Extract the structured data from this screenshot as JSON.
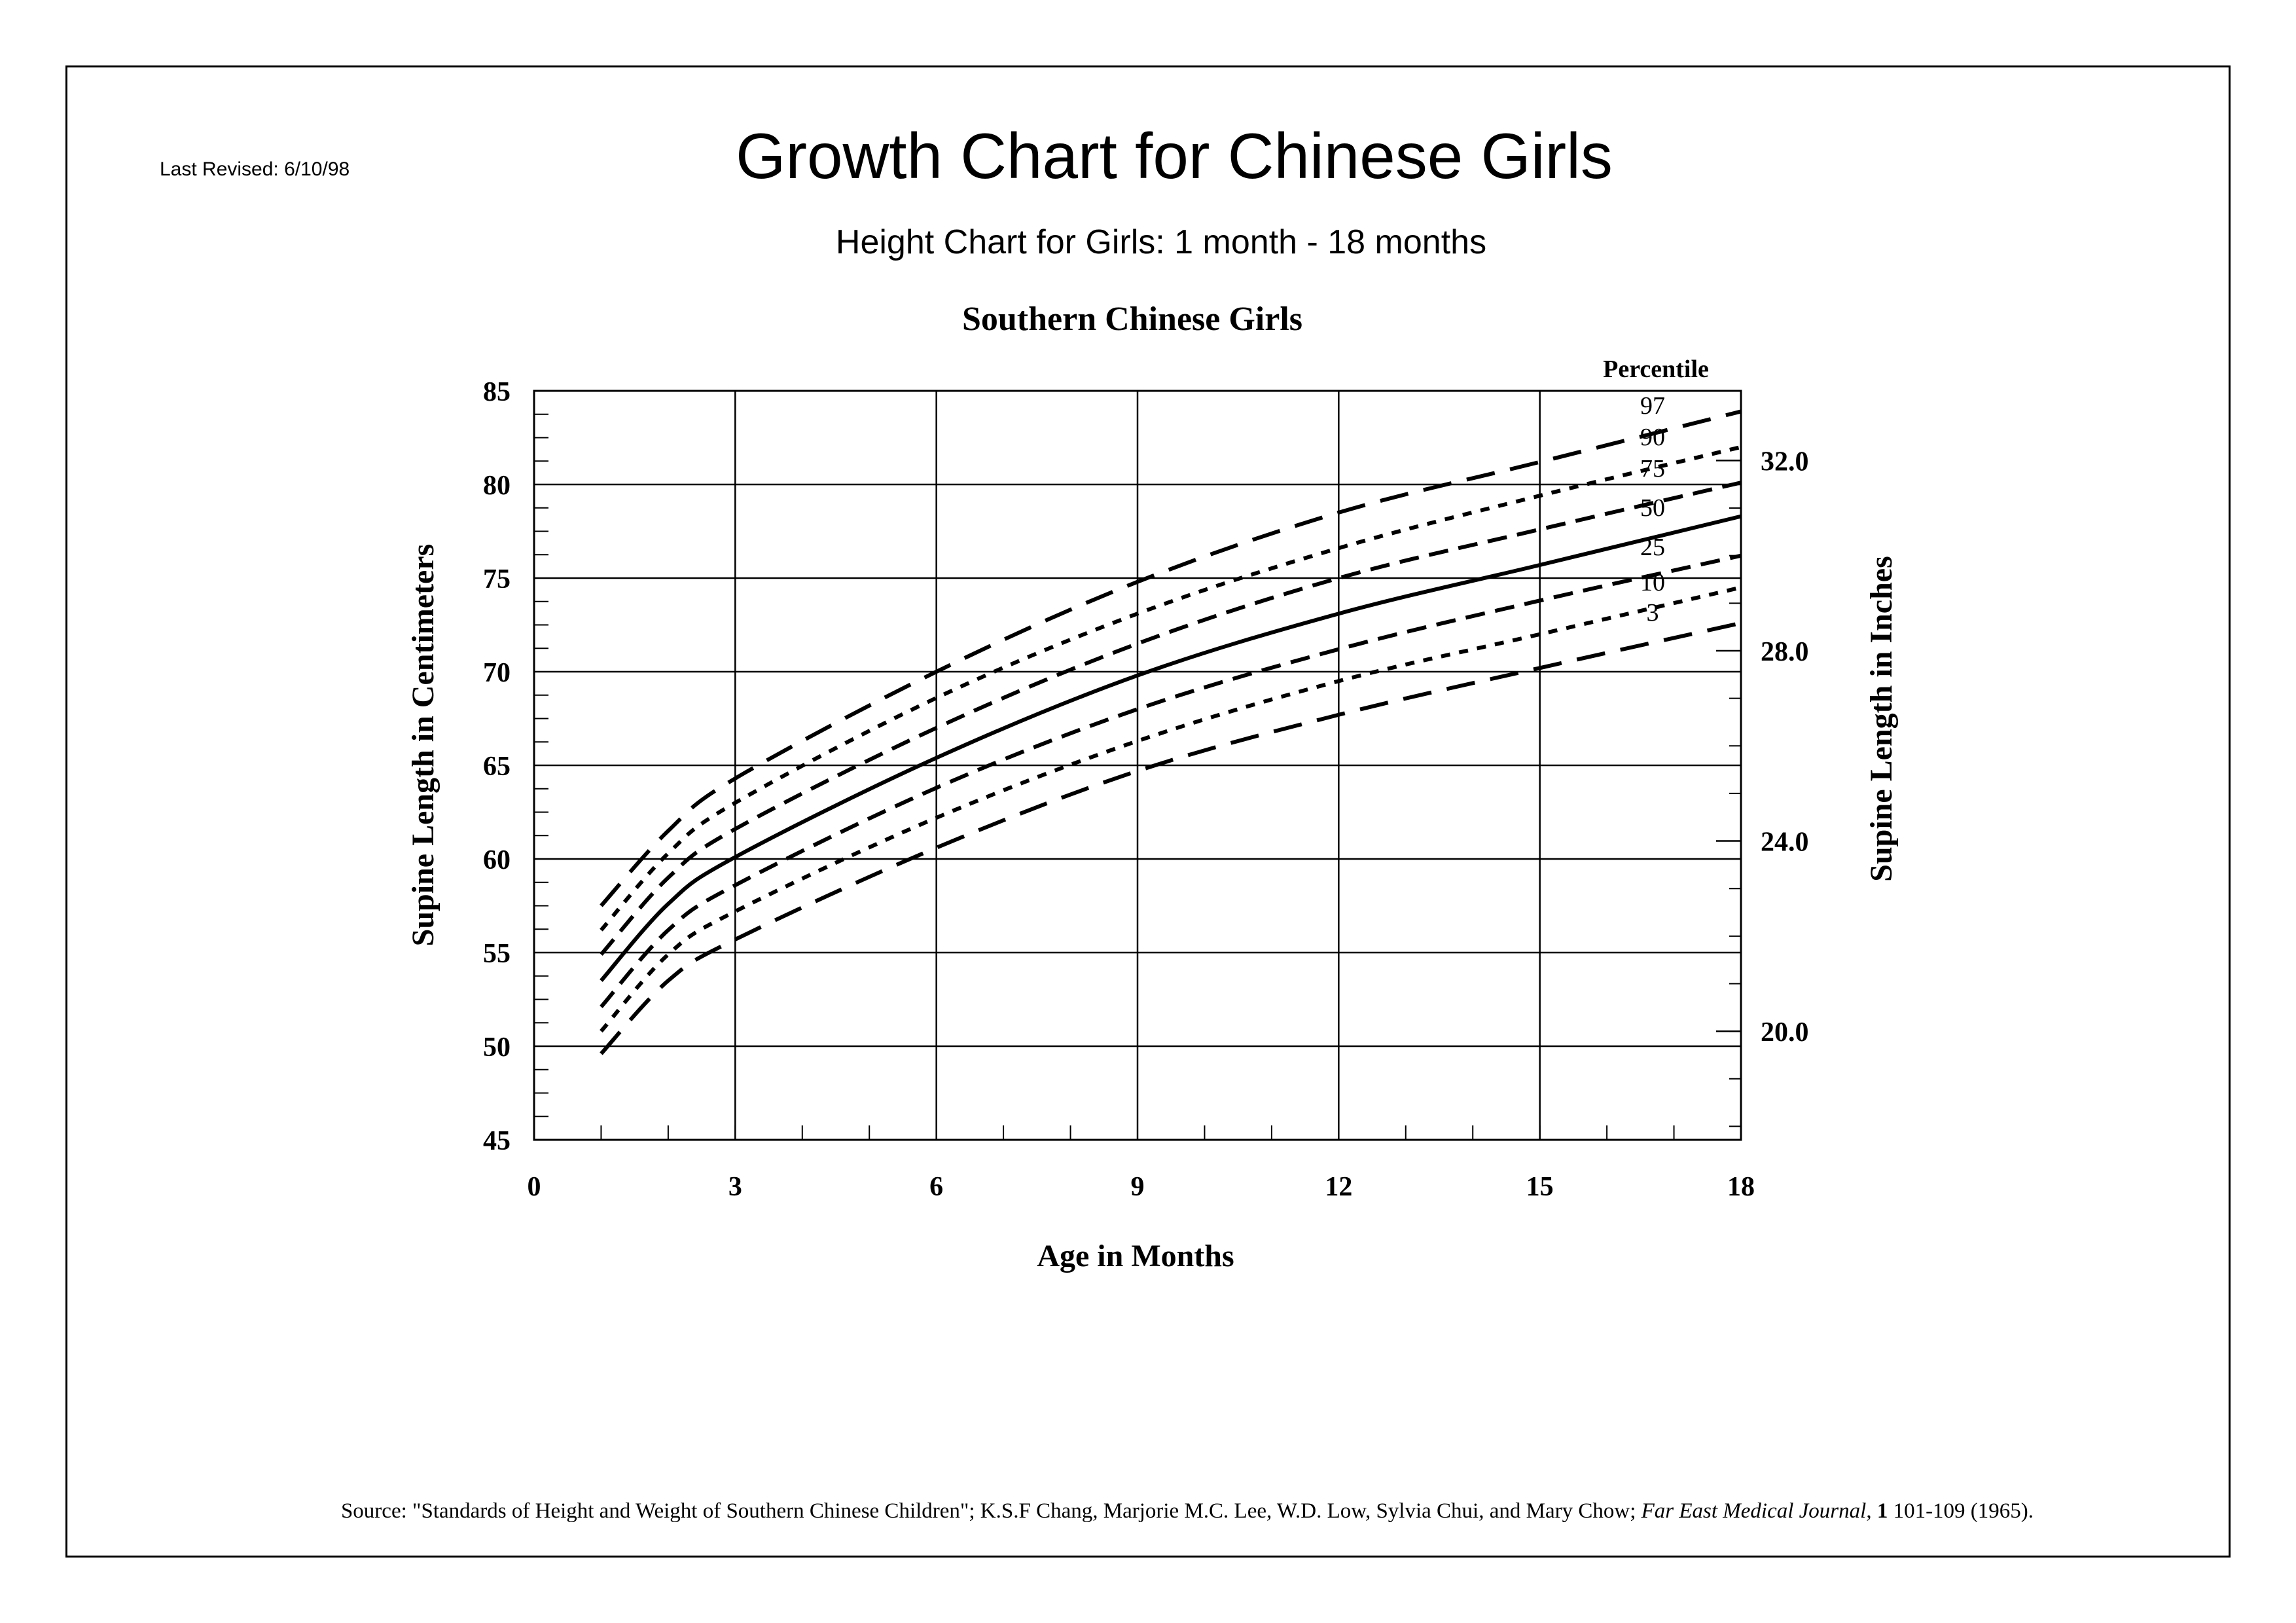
{
  "header": {
    "last_revised": "Last Revised: 6/10/98",
    "title": "Growth Chart for Chinese Girls",
    "subtitle": "Height Chart for Girls: 1 month - 18 months"
  },
  "footer": {
    "source_prefix": "Source: \"Standards of Height and Weight of Southern Chinese Children\"; K.S.F Chang, Marjorie M.C. Lee, W.D. Low, Sylvia Chui, and Mary Chow; ",
    "journal": "Far East Medical Journal",
    "sep": ", ",
    "volume": "1",
    "pages": " 101-109 (1965)."
  },
  "chart_data": {
    "type": "line",
    "title": "Southern Chinese Girls",
    "xlabel": "Age in Months",
    "ylabel": "Supine Length in Centimeters",
    "y2label": "Supine Length in Inches",
    "legend_title": "Percentile",
    "xlim": [
      0,
      18
    ],
    "ylim": [
      45,
      85
    ],
    "x_ticks": [
      0,
      3,
      6,
      9,
      12,
      15,
      18
    ],
    "y_ticks": [
      45,
      50,
      55,
      60,
      65,
      70,
      75,
      80,
      85
    ],
    "y2_ticks": [
      "20.0",
      "24.0",
      "28.0",
      "32.0"
    ],
    "grid": true,
    "x": [
      1,
      2,
      3,
      6,
      9,
      12,
      15,
      18
    ],
    "series": [
      {
        "name": "97",
        "values": [
          57.5,
          61.5,
          64.3,
          70.0,
          74.8,
          78.5,
          81.2,
          83.9
        ],
        "dash": "long"
      },
      {
        "name": "90",
        "values": [
          56.2,
          60.3,
          63.0,
          68.6,
          73.1,
          76.6,
          79.4,
          82.0
        ],
        "dash": "short"
      },
      {
        "name": "75",
        "values": [
          54.9,
          59.0,
          61.6,
          67.0,
          71.5,
          75.0,
          77.6,
          80.1
        ],
        "dash": "medium"
      },
      {
        "name": "50",
        "values": [
          53.5,
          57.6,
          60.1,
          65.4,
          69.8,
          73.1,
          75.7,
          78.3
        ],
        "dash": "solid"
      },
      {
        "name": "25",
        "values": [
          52.1,
          56.2,
          58.6,
          63.8,
          68.0,
          71.2,
          73.8,
          76.2
        ],
        "dash": "medium"
      },
      {
        "name": "10",
        "values": [
          50.8,
          54.9,
          57.2,
          62.2,
          66.3,
          69.5,
          72.0,
          74.5
        ],
        "dash": "short"
      },
      {
        "name": "3",
        "values": [
          49.6,
          53.5,
          55.7,
          60.6,
          64.7,
          67.7,
          70.2,
          72.6
        ],
        "dash": "long"
      }
    ],
    "colors": {
      "line": "#000000",
      "background": "#ffffff"
    }
  }
}
